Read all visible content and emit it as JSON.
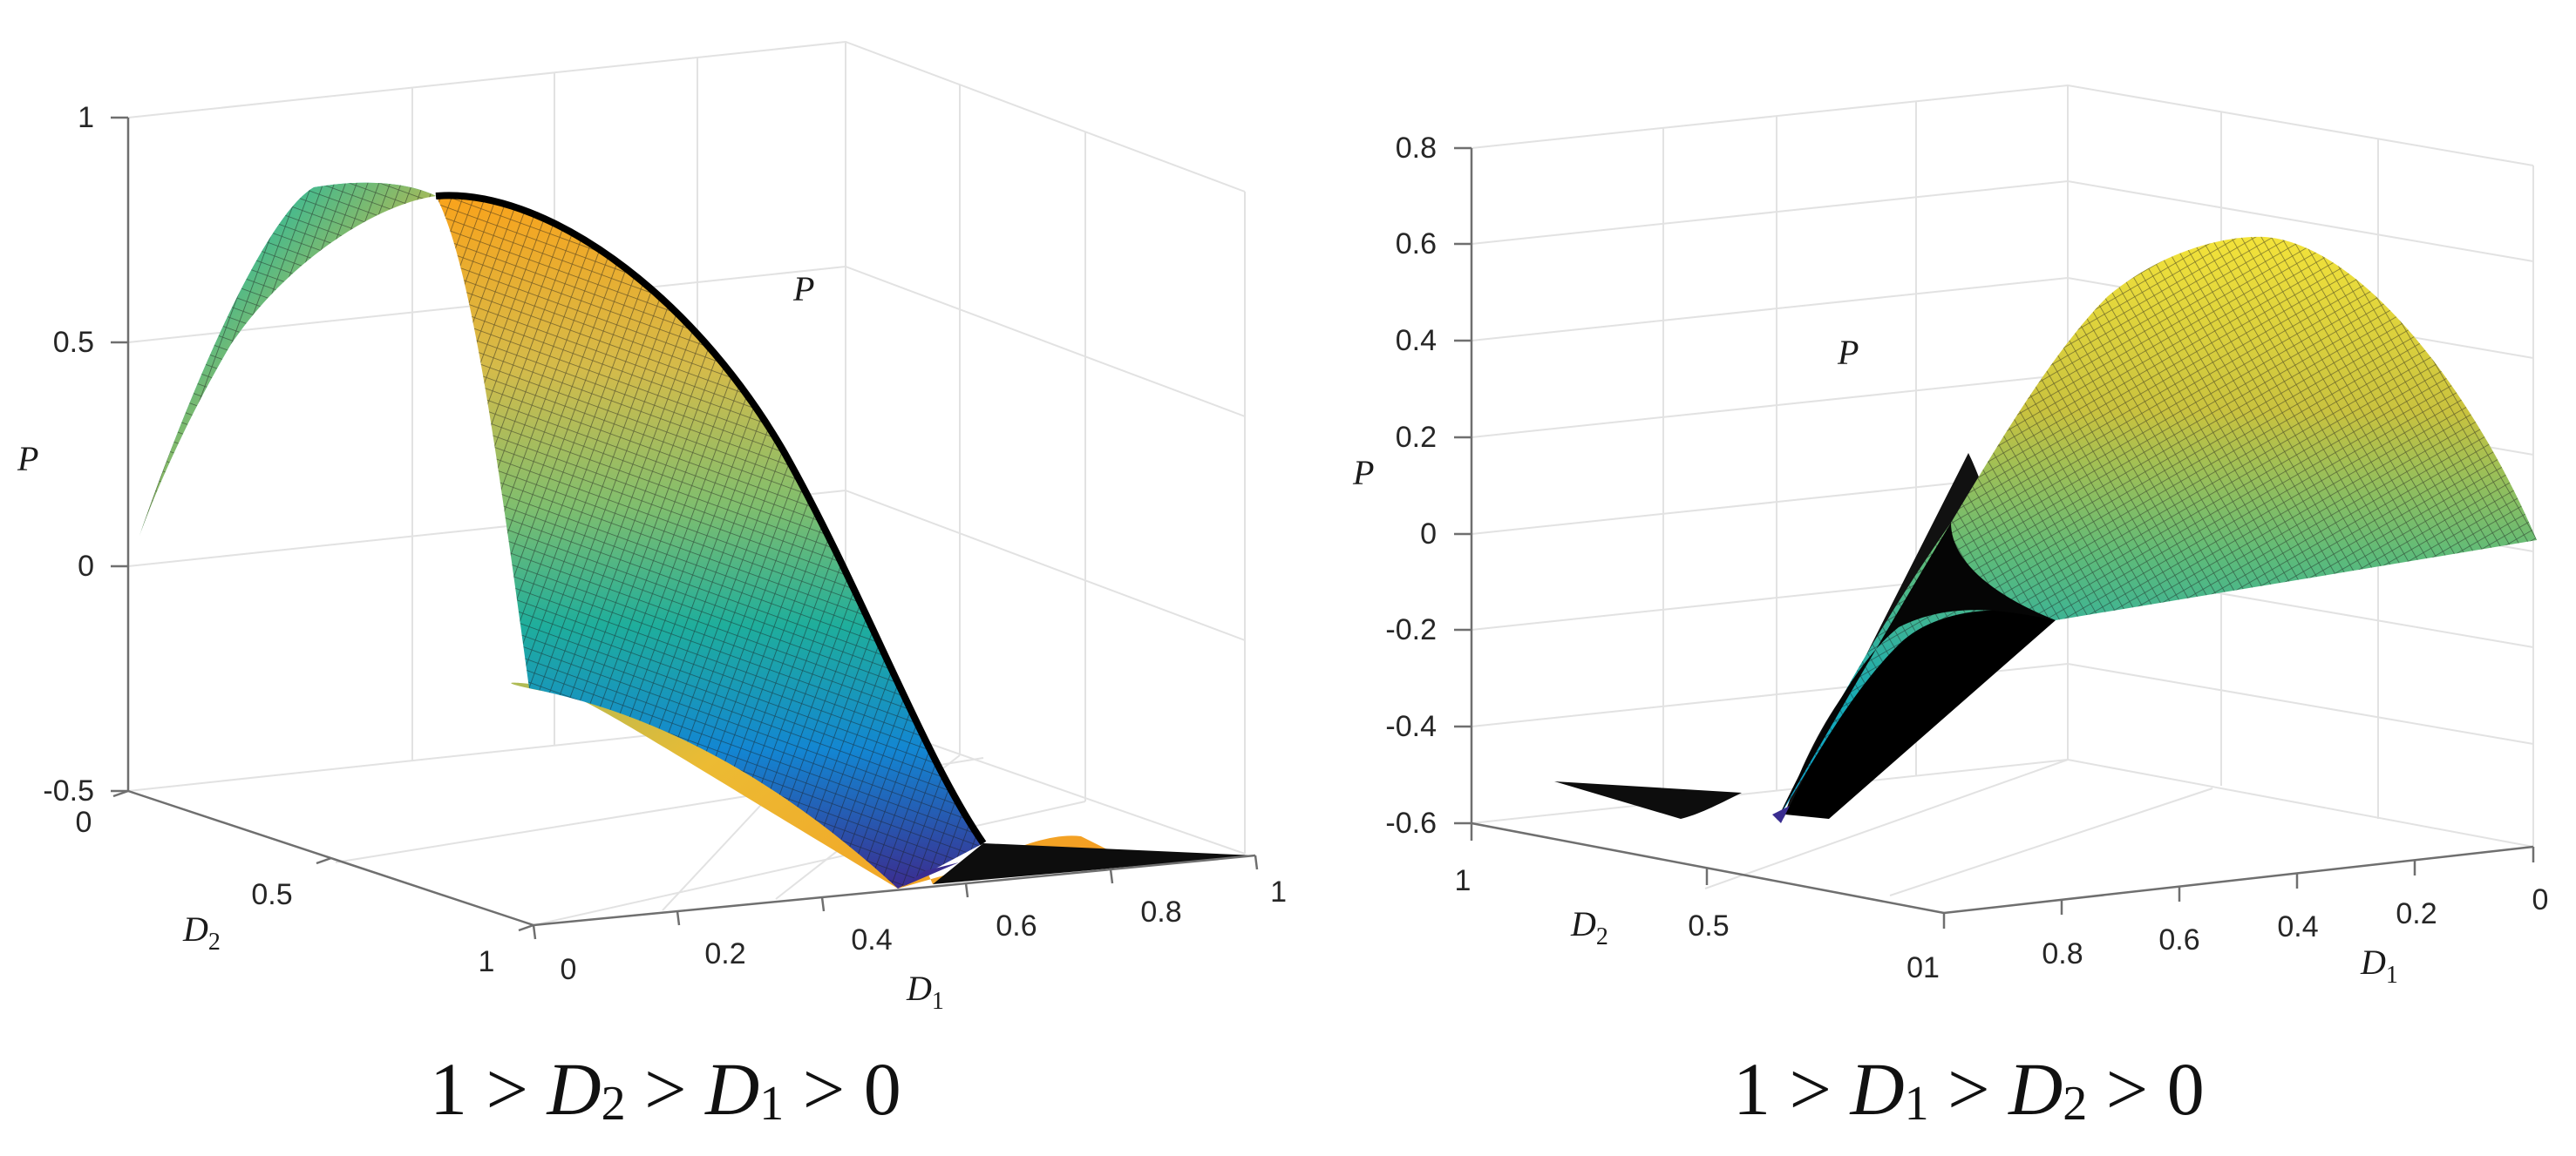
{
  "chart_data": [
    {
      "type": "surface",
      "subtitle": "1 > D2 > D1 > 0",
      "xlabel": "D1",
      "ylabel": "D2",
      "zlabel": "P",
      "xlim": [
        0,
        1
      ],
      "ylim": [
        0,
        1
      ],
      "zlim": [
        -0.5,
        1
      ],
      "xticks": [
        "0",
        "0.2",
        "0.4",
        "0.6",
        "0.8",
        "1"
      ],
      "yticks": [
        "0",
        "0.5",
        "1"
      ],
      "zticks": [
        "-0.5",
        "0",
        "0.5",
        "1"
      ],
      "colormap": "parula",
      "annotations": [
        "P"
      ],
      "ridge_points": [
        {
          "D1": 0.0,
          "D2": 1.0,
          "P": 0.08
        },
        {
          "D1": 0.0,
          "D2": 0.6,
          "P": 0.83
        },
        {
          "D1": 0.2,
          "D2": 0.5,
          "P": 0.75
        },
        {
          "D1": 0.4,
          "D2": 0.45,
          "P": 0.3
        },
        {
          "D1": 0.45,
          "D2": 0.5,
          "P": -0.2
        },
        {
          "D1": 1.0,
          "D2": 0.0,
          "P": -0.5
        }
      ]
    },
    {
      "type": "surface",
      "subtitle": "1 > D1 > D2 > 0",
      "xlabel": "D1",
      "ylabel": "D2",
      "zlabel": "P",
      "xlim": [
        0,
        1
      ],
      "ylim": [
        0,
        1
      ],
      "zlim": [
        -0.6,
        0.8
      ],
      "xticks": [
        "0",
        "0.2",
        "0.4",
        "0.6",
        "0.8",
        "1"
      ],
      "yticks": [
        "0",
        "0.5",
        "1"
      ],
      "zticks": [
        "-0.6",
        "-0.4",
        "-0.2",
        "0",
        "0.2",
        "0.4",
        "0.6",
        "0.8"
      ],
      "colormap": "parula",
      "annotations": [
        "P"
      ],
      "ridge_points": [
        {
          "D1": 0.5,
          "D2": 0.5,
          "P": -0.58
        },
        {
          "D1": 1.0,
          "D2": 0.0,
          "P": -0.18
        },
        {
          "D1": 0.5,
          "D2": 0.0,
          "P": 0.6
        },
        {
          "D1": 0.0,
          "D2": 0.0,
          "P": 0.0
        }
      ]
    }
  ],
  "left": {
    "zticks": [
      "1",
      "0.5",
      "0",
      "-0.5"
    ],
    "yticks": [
      "0",
      "0.5",
      "1"
    ],
    "xticks": [
      "0",
      "0.2",
      "0.4",
      "0.6",
      "0.8",
      "1"
    ],
    "zlabel": "P",
    "ylabel": "D",
    "ylabel_sub": "2",
    "xlabel": "D",
    "xlabel_sub": "1",
    "annotation": "P",
    "caption": {
      "a": "1 > ",
      "v1": "D",
      "s1": "2",
      "b": " > ",
      "v2": "D",
      "s2": "1",
      "c": " > 0"
    }
  },
  "right": {
    "zticks": [
      "0.8",
      "0.6",
      "0.4",
      "0.2",
      "0",
      "-0.2",
      "-0.4",
      "-0.6"
    ],
    "yticks": [
      "1",
      "0.5",
      "01"
    ],
    "xticks": [
      "0.8",
      "0.6",
      "0.4",
      "0.2",
      "0"
    ],
    "zlabel": "P",
    "ylabel": "D",
    "ylabel_sub": "2",
    "xlabel": "D",
    "xlabel_sub": "1",
    "annotation": "P",
    "caption": {
      "a": "1 > ",
      "v1": "D",
      "s1": "1",
      "b": " > ",
      "v2": "D",
      "s2": "2",
      "c": " > 0"
    }
  },
  "colors": {
    "parula": [
      "#352a87",
      "#0f5cdd",
      "#1481d6",
      "#06a4ca",
      "#2eb7a4",
      "#87bf77",
      "#d1bb59",
      "#fec832",
      "#f9fb0e"
    ],
    "grid": "#e2e2e2",
    "axis": "#6f6f6f",
    "mesh": "#111111"
  }
}
